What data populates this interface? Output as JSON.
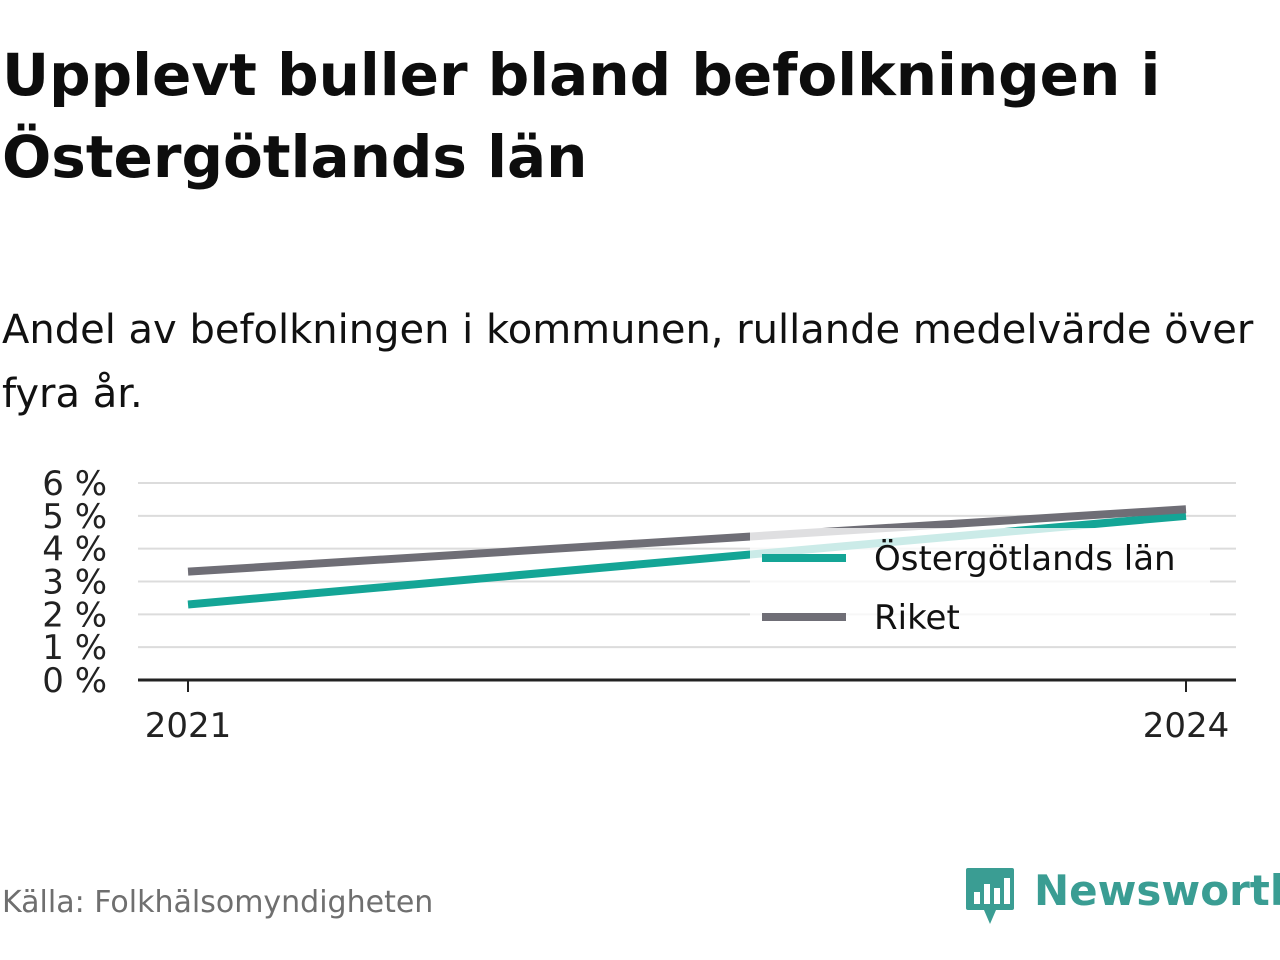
{
  "header": {
    "title": "Upplevt buller bland befolkningen i Östergötlands län",
    "subtitle": "Andel av befolkningen i kommunen, rullande medelvärde över fyra år."
  },
  "footer": {
    "source": "Källa: Folkhälsomyndigheten",
    "brand": "Newsworthy"
  },
  "colors": {
    "ostergotland": "#14a596",
    "riket": "#6f6e76",
    "grid": "#dcdcdc",
    "axis": "#222222",
    "brand": "#3a9d93"
  },
  "chart_data": {
    "type": "line",
    "x": [
      "2021",
      "2024"
    ],
    "x_ticks": [
      "2021",
      "2024"
    ],
    "y_ticks": [
      "0 %",
      "1 %",
      "2 %",
      "3 %",
      "4 %",
      "5 %",
      "6 %"
    ],
    "ylim": [
      0,
      6
    ],
    "grid": true,
    "legend_position": "right",
    "series": [
      {
        "name": "Östergötlands län",
        "values": [
          2.3,
          5.0
        ],
        "color": "#14a596"
      },
      {
        "name": "Riket",
        "values": [
          3.3,
          5.2
        ],
        "color": "#6f6e76"
      }
    ]
  }
}
